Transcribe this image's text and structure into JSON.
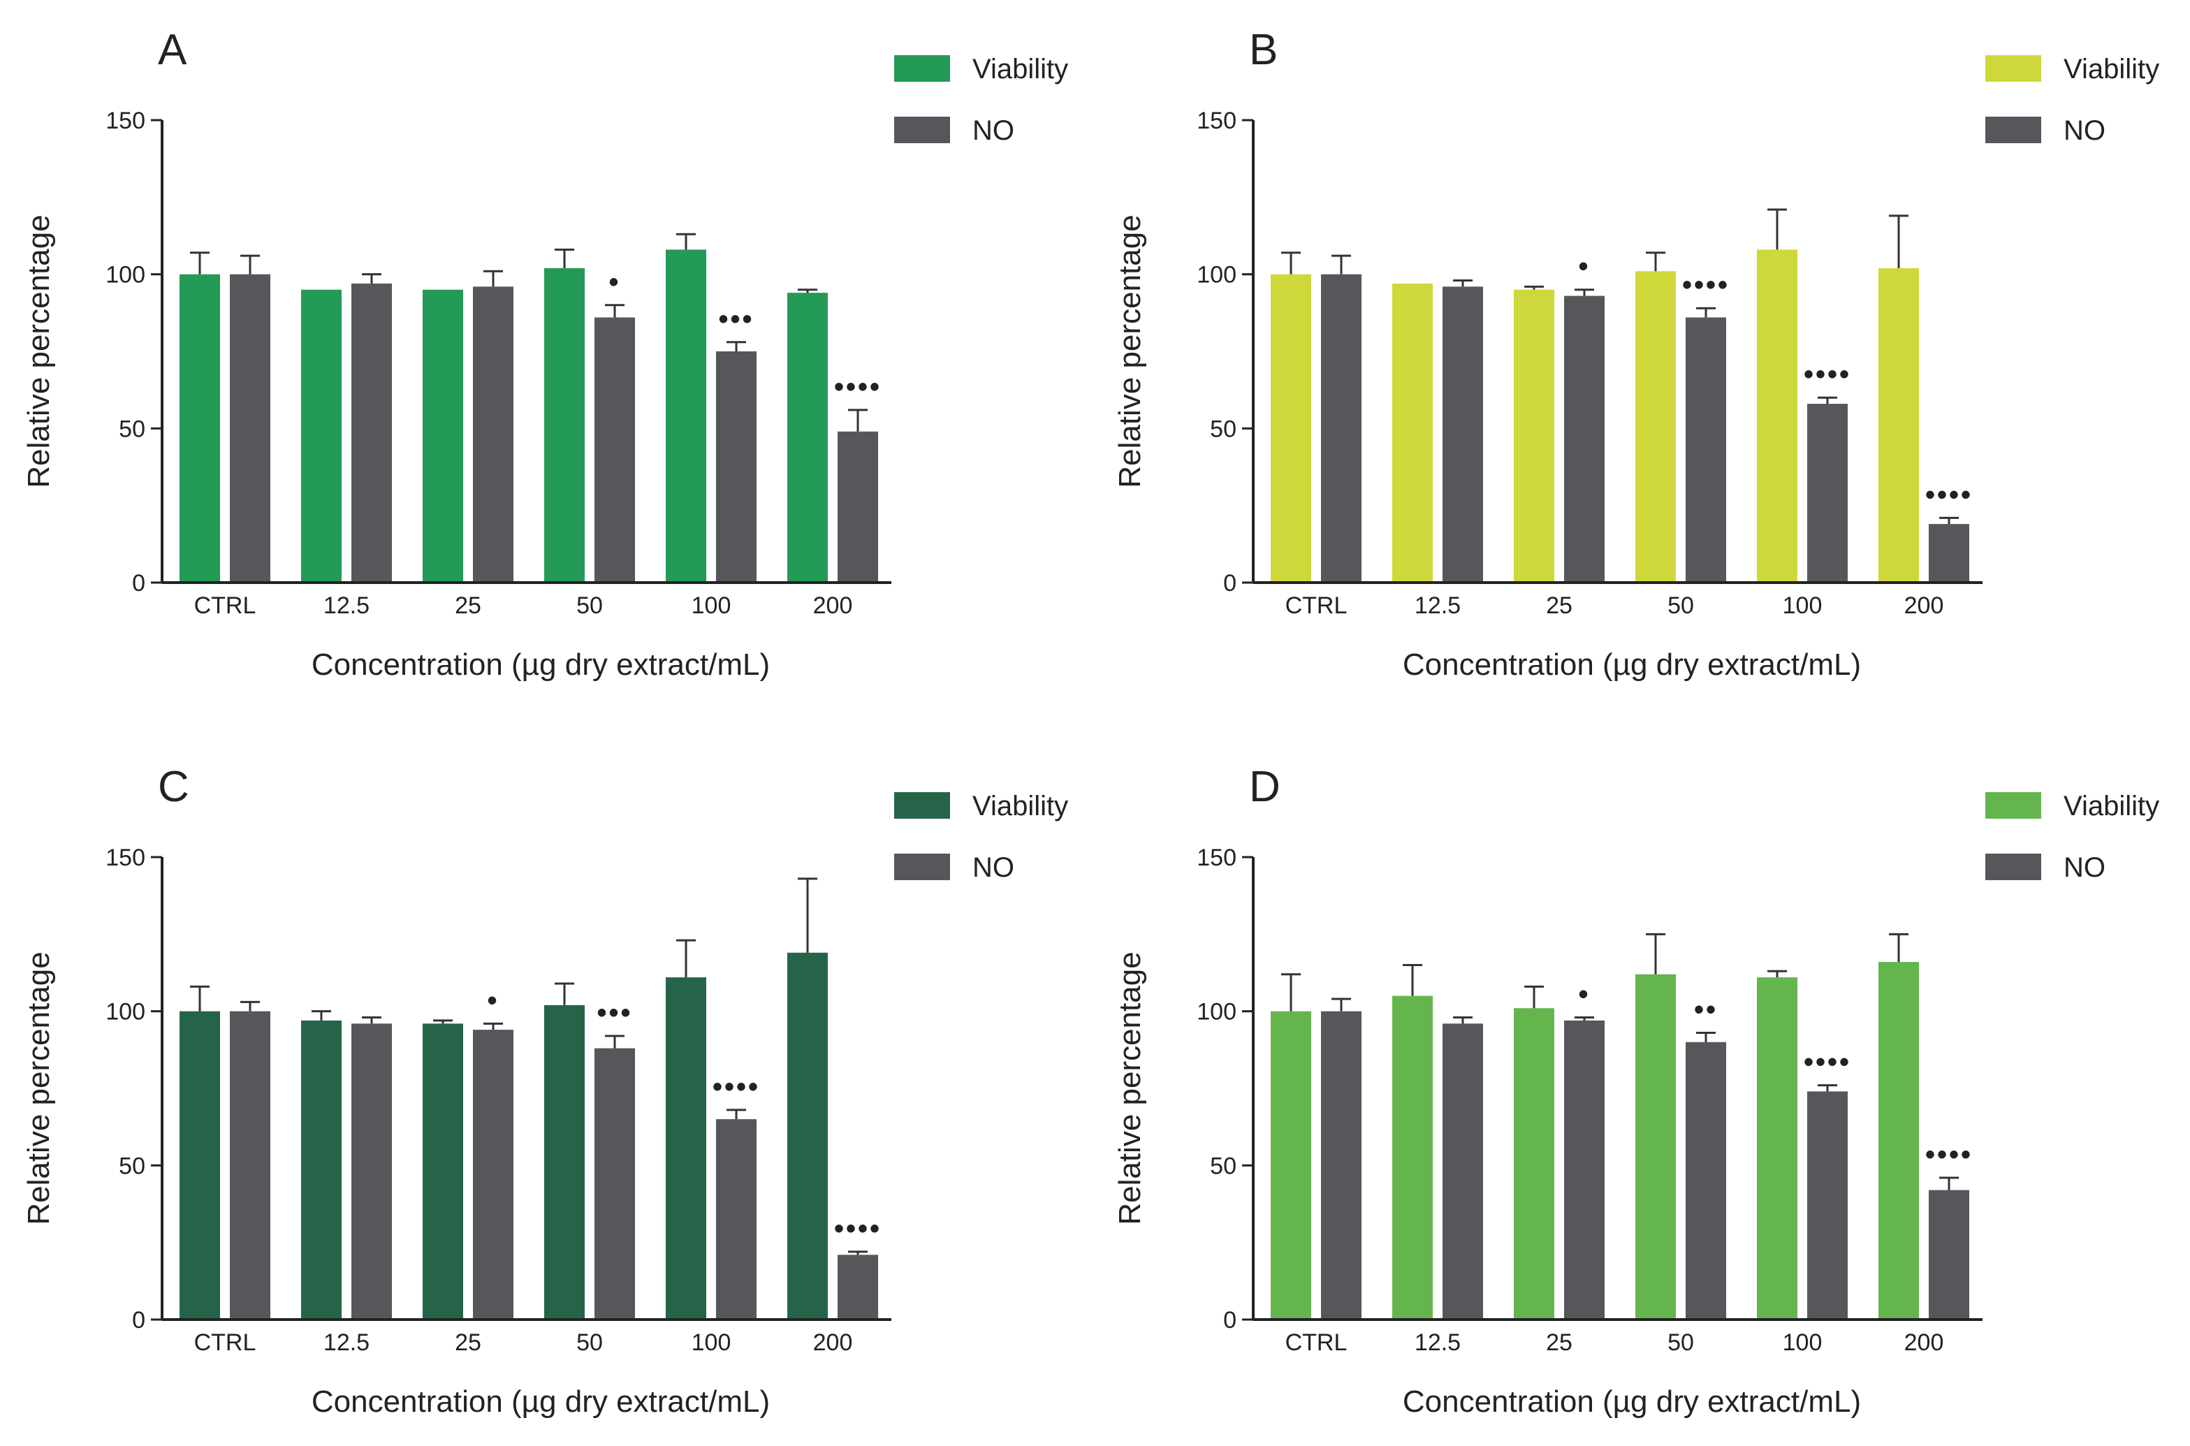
{
  "chart_data": [
    {
      "type": "bar",
      "panel": "A",
      "categories": [
        "CTRL",
        "12.5",
        "25",
        "50",
        "100",
        "200"
      ],
      "xlabel": "Concentration (µg dry extract/mL)",
      "ylabel": "Relative percentage",
      "ylim": [
        0,
        150
      ],
      "yticks": [
        "0",
        "50",
        "100",
        "150"
      ],
      "legend_position": "top-right",
      "series": [
        {
          "name": "Viability",
          "color": "#239a55",
          "values": [
            100,
            95,
            95,
            102,
            108,
            94
          ],
          "errors": [
            7,
            0,
            0,
            6,
            5,
            1
          ],
          "significance": [
            "",
            "",
            "",
            "",
            "",
            ""
          ]
        },
        {
          "name": "NO",
          "color": "#56575a",
          "values": [
            100,
            97,
            96,
            86,
            75,
            49
          ],
          "errors": [
            6,
            3,
            5,
            4,
            3,
            7
          ],
          "significance": [
            "",
            "",
            "",
            "•",
            "•••",
            "••••"
          ]
        }
      ]
    },
    {
      "type": "bar",
      "panel": "B",
      "categories": [
        "CTRL",
        "12.5",
        "25",
        "50",
        "100",
        "200"
      ],
      "xlabel": "Concentration (µg dry extract/mL)",
      "ylabel": "Relative percentage",
      "ylim": [
        0,
        150
      ],
      "yticks": [
        "0",
        "50",
        "100",
        "150"
      ],
      "legend_position": "top-right",
      "series": [
        {
          "name": "Viability",
          "color": "#cfd83a",
          "values": [
            100,
            97,
            95,
            101,
            108,
            102
          ],
          "errors": [
            7,
            0,
            1,
            6,
            13,
            17
          ],
          "significance": [
            "",
            "",
            "",
            "",
            "",
            ""
          ]
        },
        {
          "name": "NO",
          "color": "#56575a",
          "values": [
            100,
            96,
            93,
            86,
            58,
            19
          ],
          "errors": [
            6,
            2,
            2,
            3,
            2,
            2
          ],
          "significance": [
            "",
            "",
            "•",
            "••••",
            "••••",
            "••••"
          ]
        }
      ]
    },
    {
      "type": "bar",
      "panel": "C",
      "categories": [
        "CTRL",
        "12.5",
        "25",
        "50",
        "100",
        "200"
      ],
      "xlabel": "Concentration (µg dry extract/mL)",
      "ylabel": "Relative percentage",
      "ylim": [
        0,
        150
      ],
      "yticks": [
        "0",
        "50",
        "100",
        "150"
      ],
      "legend_position": "top-right",
      "series": [
        {
          "name": "Viability",
          "color": "#256448",
          "values": [
            100,
            97,
            96,
            102,
            111,
            119
          ],
          "errors": [
            8,
            3,
            1,
            7,
            12,
            24
          ],
          "significance": [
            "",
            "",
            "",
            "",
            "",
            ""
          ]
        },
        {
          "name": "NO",
          "color": "#56575a",
          "values": [
            100,
            96,
            94,
            88,
            65,
            21
          ],
          "errors": [
            3,
            2,
            2,
            4,
            3,
            1
          ],
          "significance": [
            "",
            "",
            "•",
            "•••",
            "••••",
            "••••"
          ]
        }
      ]
    },
    {
      "type": "bar",
      "panel": "D",
      "categories": [
        "CTRL",
        "12.5",
        "25",
        "50",
        "100",
        "200"
      ],
      "xlabel": "Concentration (µg dry extract/mL)",
      "ylabel": "Relative percentage",
      "ylim": [
        0,
        150
      ],
      "yticks": [
        "0",
        "50",
        "100",
        "150"
      ],
      "legend_position": "top-right",
      "series": [
        {
          "name": "Viability",
          "color": "#65b54f",
          "values": [
            100,
            105,
            101,
            112,
            111,
            116
          ],
          "errors": [
            12,
            10,
            7,
            13,
            2,
            9
          ],
          "significance": [
            "",
            "",
            "",
            "",
            "",
            ""
          ]
        },
        {
          "name": "NO",
          "color": "#56575a",
          "values": [
            100,
            96,
            97,
            90,
            74,
            42
          ],
          "errors": [
            4,
            2,
            1,
            3,
            2,
            4
          ],
          "significance": [
            "",
            "",
            "•",
            "••",
            "••••",
            "••••"
          ]
        }
      ]
    }
  ]
}
